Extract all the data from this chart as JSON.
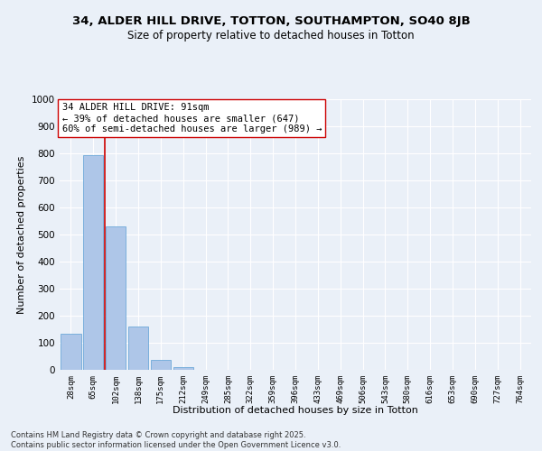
{
  "title_line1": "34, ALDER HILL DRIVE, TOTTON, SOUTHAMPTON, SO40 8JB",
  "title_line2": "Size of property relative to detached houses in Totton",
  "xlabel": "Distribution of detached houses by size in Totton",
  "ylabel": "Number of detached properties",
  "bar_labels": [
    "28sqm",
    "65sqm",
    "102sqm",
    "138sqm",
    "175sqm",
    "212sqm",
    "249sqm",
    "285sqm",
    "322sqm",
    "359sqm",
    "396sqm",
    "433sqm",
    "469sqm",
    "506sqm",
    "543sqm",
    "580sqm",
    "616sqm",
    "653sqm",
    "690sqm",
    "727sqm",
    "764sqm"
  ],
  "bar_values": [
    135,
    795,
    530,
    160,
    37,
    10,
    0,
    0,
    0,
    0,
    0,
    0,
    0,
    0,
    0,
    0,
    0,
    0,
    0,
    0,
    0
  ],
  "bar_color": "#aec6e8",
  "bar_edge_color": "#5a9fd4",
  "vline_color": "#cc0000",
  "vline_x_index": 1.5,
  "annotation_text": "34 ALDER HILL DRIVE: 91sqm\n← 39% of detached houses are smaller (647)\n60% of semi-detached houses are larger (989) →",
  "annotation_box_color": "#ffffff",
  "annotation_box_edge": "#cc0000",
  "ylim": [
    0,
    1000
  ],
  "yticks": [
    0,
    100,
    200,
    300,
    400,
    500,
    600,
    700,
    800,
    900,
    1000
  ],
  "background_color": "#eaf0f8",
  "grid_color": "#ffffff",
  "footer_line1": "Contains HM Land Registry data © Crown copyright and database right 2025.",
  "footer_line2": "Contains public sector information licensed under the Open Government Licence v3.0.",
  "title_fontsize": 9.5,
  "subtitle_fontsize": 8.5,
  "axis_label_fontsize": 8,
  "tick_fontsize": 6.5,
  "annotation_fontsize": 7.5,
  "footer_fontsize": 6
}
